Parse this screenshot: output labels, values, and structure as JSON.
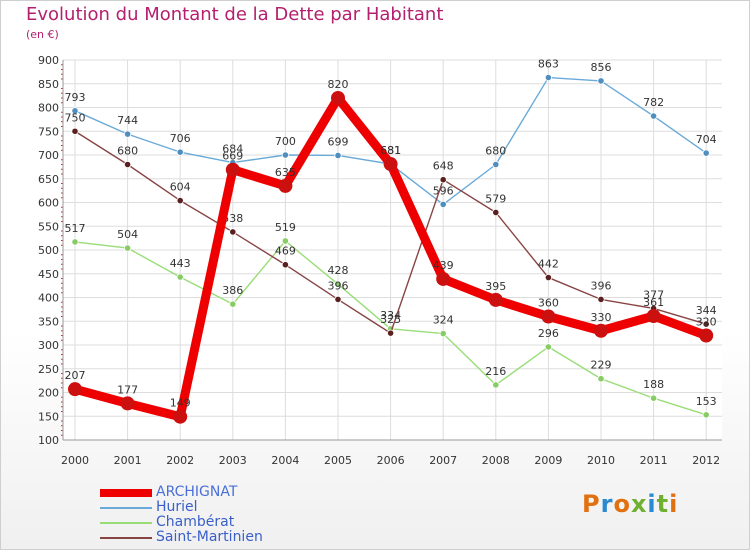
{
  "title": "Evolution du Montant de la Dette par Habitant",
  "subtitle": "(en €)",
  "logo": {
    "text": "Proxiti",
    "letter_colors": [
      "#e07010",
      "#2a8ad0",
      "#e07010",
      "#70b030",
      "#2a8ad0",
      "#70b030",
      "#e07010"
    ]
  },
  "chart_data": {
    "type": "line",
    "title": "Evolution du Montant de la Dette par Habitant",
    "subtitle": "(en €)",
    "xlabel": "",
    "ylabel": "",
    "x": [
      "2000",
      "2001",
      "2002",
      "2003",
      "2004",
      "2005",
      "2006",
      "2007",
      "2008",
      "2009",
      "2010",
      "2011",
      "2012"
    ],
    "ylim": [
      100,
      900
    ],
    "yticks": [
      100,
      150,
      200,
      250,
      300,
      350,
      400,
      450,
      500,
      550,
      600,
      650,
      700,
      750,
      800,
      850,
      900
    ],
    "grid": true,
    "legend_position": "bottom-left",
    "series": [
      {
        "name": "ARCHIGNAT",
        "color": "#ee0000",
        "marker": "#cc1010",
        "values": [
          207,
          177,
          149,
          669,
          635,
          820,
          681,
          439,
          395,
          360,
          330,
          361,
          320
        ]
      },
      {
        "name": "Huriel",
        "color": "#6aaad8",
        "marker": "#4f8fc0",
        "values": [
          793,
          744,
          706,
          684,
          700,
          699,
          681,
          596,
          680,
          863,
          856,
          782,
          704
        ]
      },
      {
        "name": "Chambérat",
        "color": "#99dd77",
        "marker": "#88cc66",
        "values": [
          517,
          504,
          443,
          386,
          519,
          428,
          334,
          324,
          216,
          296,
          229,
          188,
          153
        ]
      },
      {
        "name": "Saint-Martinien",
        "color": "#884444",
        "marker": "#5a1f1f",
        "values": [
          750,
          680,
          604,
          538,
          469,
          396,
          325,
          648,
          579,
          442,
          396,
          377,
          344
        ]
      }
    ]
  }
}
